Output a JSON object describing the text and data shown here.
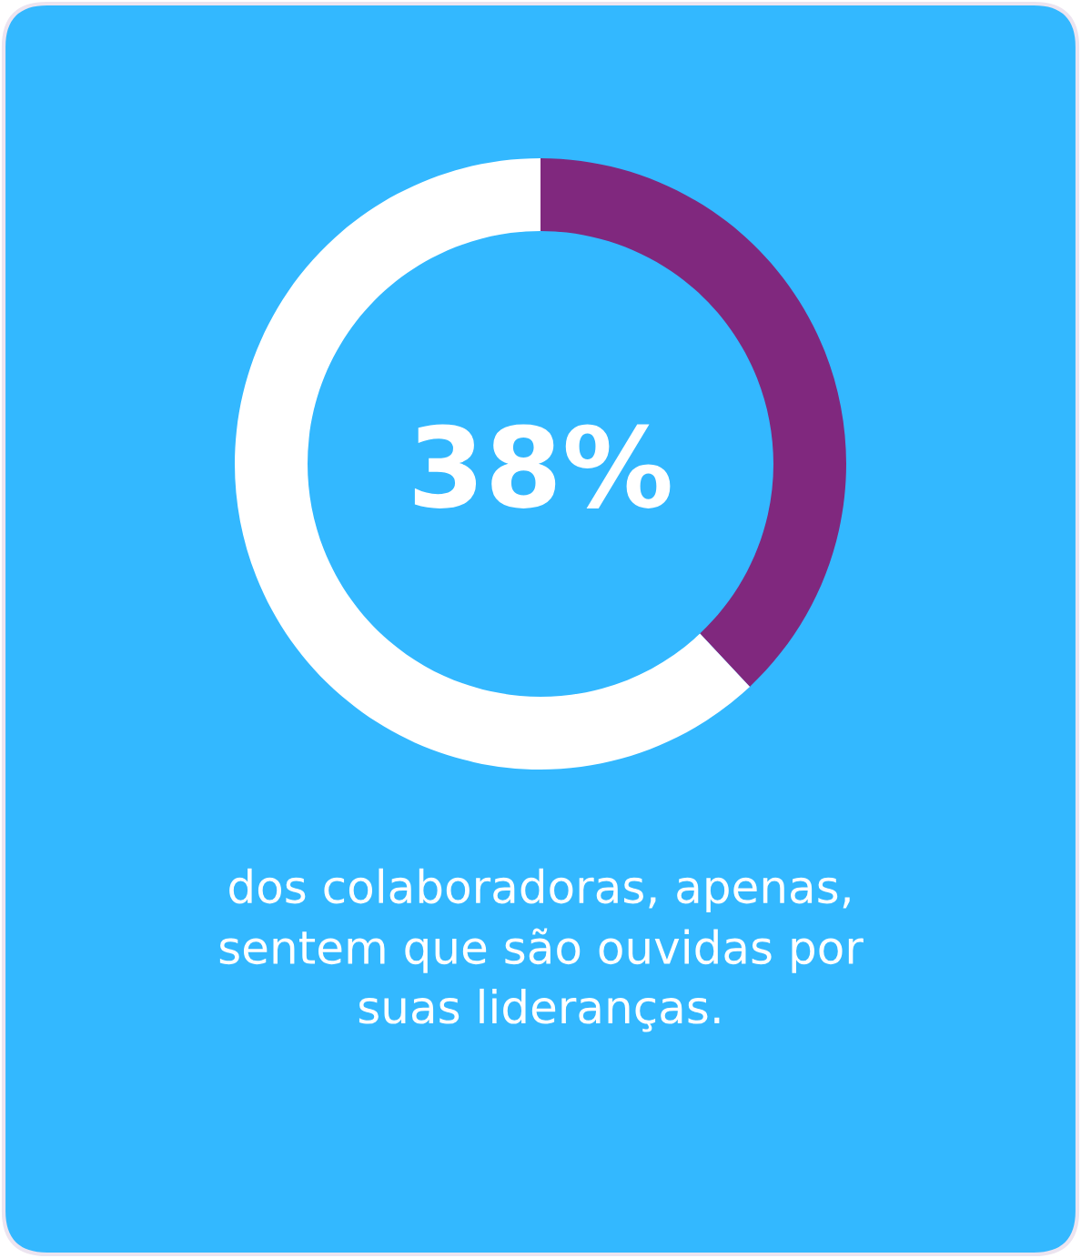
{
  "chart_data": {
    "type": "donut",
    "categories": [
      null,
      null
    ],
    "values": [
      38,
      62
    ],
    "colors": [
      "#80287e",
      "#ffffff"
    ],
    "value_labels": [
      "38%",
      null
    ],
    "annotations": [
      "dos colaboradoras, apenas,\nsentem que são ouvidas por\nsuas lideranças."
    ]
  }
}
